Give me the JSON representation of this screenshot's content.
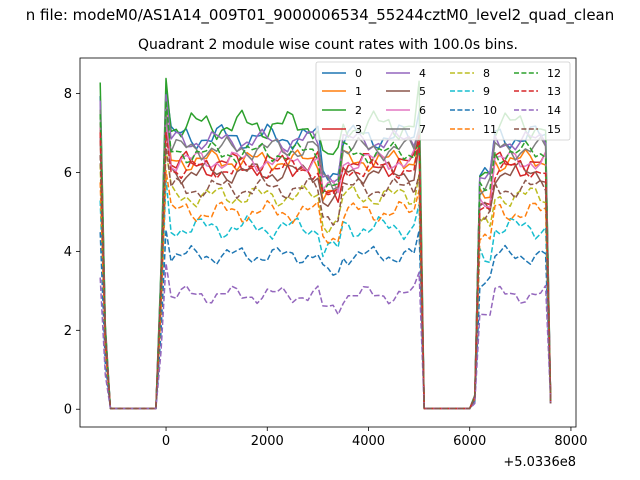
{
  "figure": {
    "suptitle": "n file: modeM0/AS1A14_009T01_9000006534_55244cztM0_level2_quad_clean",
    "title": "Quadrant 2 module wise count rates with 100.0s bins.",
    "offset_label": "+5.0336e8"
  },
  "chart_data": {
    "type": "line",
    "title": "Quadrant 2 module wise count rates with 100.0s bins.",
    "xlabel": "",
    "ylabel": "",
    "x_offset": 503360000,
    "xlim": [
      -1700,
      8100
    ],
    "ylim": [
      -0.45,
      8.9
    ],
    "xticks": [
      0,
      2000,
      4000,
      6000,
      8000
    ],
    "xtick_labels": [
      "0",
      "2000",
      "4000",
      "6000",
      "8000"
    ],
    "yticks": [
      0,
      2,
      4,
      6,
      8
    ],
    "ytick_labels": [
      "0",
      "2",
      "4",
      "6",
      "8"
    ],
    "grid": false,
    "legend": {
      "placement": "top-right",
      "columns": 4
    },
    "x_segments": [
      {
        "start": -1300,
        "end": 7600,
        "step": 100
      }
    ],
    "series": [
      {
        "name": "0",
        "color": "#1f77b4",
        "dash": "solid",
        "level": 6.9,
        "amp": 0.35
      },
      {
        "name": "1",
        "color": "#ff7f0e",
        "dash": "solid",
        "level": 6.3,
        "amp": 0.3
      },
      {
        "name": "2",
        "color": "#2ca02c",
        "dash": "solid",
        "level": 7.2,
        "amp": 0.4
      },
      {
        "name": "3",
        "color": "#d62728",
        "dash": "solid",
        "level": 6.2,
        "amp": 0.35
      },
      {
        "name": "4",
        "color": "#9467bd",
        "dash": "solid",
        "level": 6.8,
        "amp": 0.3
      },
      {
        "name": "5",
        "color": "#8c564b",
        "dash": "solid",
        "level": 6.0,
        "amp": 0.3
      },
      {
        "name": "6",
        "color": "#e377c2",
        "dash": "solid",
        "level": 6.3,
        "amp": 0.3
      },
      {
        "name": "7",
        "color": "#7f7f7f",
        "dash": "solid",
        "level": 6.6,
        "amp": 0.3
      },
      {
        "name": "8",
        "color": "#bcbd22",
        "dash": "dashed",
        "level": 5.4,
        "amp": 0.3
      },
      {
        "name": "9",
        "color": "#17becf",
        "dash": "dashed",
        "level": 4.6,
        "amp": 0.3
      },
      {
        "name": "10",
        "color": "#1f77b4",
        "dash": "dashed",
        "level": 3.9,
        "amp": 0.25
      },
      {
        "name": "11",
        "color": "#ff7f0e",
        "dash": "dashed",
        "level": 5.0,
        "amp": 0.3
      },
      {
        "name": "12",
        "color": "#2ca02c",
        "dash": "dashed",
        "level": 6.5,
        "amp": 0.3
      },
      {
        "name": "13",
        "color": "#d62728",
        "dash": "dashed",
        "level": 6.1,
        "amp": 0.3
      },
      {
        "name": "14",
        "color": "#9467bd",
        "dash": "dashed",
        "level": 2.9,
        "amp": 0.25
      },
      {
        "name": "15",
        "color": "#8c564b",
        "dash": "dashed",
        "level": 5.6,
        "amp": 0.3
      }
    ],
    "notes": "Count rates drop to 0 during gaps at about x=-1100..-200 and x=5100..6000; sharp peak near x=0 (series 0 reaches ~8.5); dip near x=3200."
  }
}
